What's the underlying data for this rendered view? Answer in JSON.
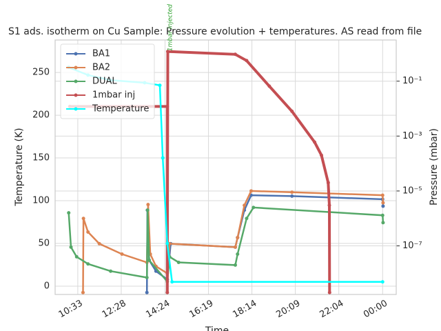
{
  "chart_data": {
    "type": "line",
    "title": "S1 ads. isotherm on Cu Sample: Pressure evolution + temperatures. AS read from file",
    "x_label": "Time",
    "y_label": "Temperature (K)",
    "y2_label": "Pressure (mbar)",
    "xlim": [
      9.55,
      24.6
    ],
    "xticks": [
      {
        "value": 10.55,
        "label": "10:33"
      },
      {
        "value": 12.467,
        "label": "12:28"
      },
      {
        "value": 14.4,
        "label": "14:24"
      },
      {
        "value": 16.317,
        "label": "16:19"
      },
      {
        "value": 18.233,
        "label": "18:14"
      },
      {
        "value": 20.15,
        "label": "20:09"
      },
      {
        "value": 22.067,
        "label": "22:04"
      },
      {
        "value": 24,
        "label": "00:00"
      }
    ],
    "ylim": [
      -9.7,
      288
    ],
    "yticks": [
      0,
      50,
      100,
      150,
      200,
      250
    ],
    "y2lim": [
      1.7e-09,
      3.16
    ],
    "y2scale": "log",
    "y2ticks": [
      {
        "value": 1e-07,
        "label": "10⁻⁷"
      },
      {
        "value": 1e-05,
        "label": "10⁻⁵"
      },
      {
        "value": 0.001,
        "label": "10⁻³"
      },
      {
        "value": 0.1,
        "label": "10⁻¹"
      }
    ],
    "grid": true,
    "legend": "upper left",
    "annotations": [
      {
        "x": 14.5,
        "text": "1mbar injected"
      }
    ],
    "series": [
      {
        "name": "BA1",
        "color": "#4c72b0",
        "axis": "y2",
        "x": [
          13.6,
          13.62,
          13.7,
          14.0,
          14.5,
          14.65,
          17.5,
          17.6,
          17.9,
          18.2,
          20,
          24,
          24.02
        ],
        "values": [
          2e-09,
          2e-06,
          3e-08,
          1.2e-08,
          6e-09,
          1.2e-07,
          9e-08,
          2e-07,
          2e-06,
          7e-06,
          6.5e-06,
          5e-06,
          2.8e-06
        ]
      },
      {
        "name": "BA2",
        "color": "#dd8452",
        "axis": "y2",
        "x": [
          10.78,
          10.8,
          11.0,
          11.5,
          12.5,
          13.6,
          13.65,
          13.75,
          14.0,
          14.5,
          14.6,
          17.5,
          17.6,
          17.9,
          18.2,
          20,
          24,
          24.02
        ],
        "values": [
          2e-09,
          1e-06,
          3.2e-07,
          1.2e-07,
          5e-08,
          2.5e-08,
          3.2e-06,
          5e-08,
          1.8e-08,
          1e-08,
          1.2e-07,
          9e-08,
          2e-07,
          3e-06,
          1e-05,
          9e-06,
          7e-06,
          3.7e-06
        ]
      },
      {
        "name": "DUAL",
        "color": "#55a868",
        "axis": "y2",
        "x": [
          10.15,
          10.25,
          10.5,
          11,
          12,
          13.6,
          13.63,
          13.7,
          14.5,
          14.6,
          15,
          17.5,
          17.6,
          18.0,
          18.3,
          24,
          24.02
        ],
        "values": [
          1.6e-06,
          9e-08,
          4e-08,
          2.2e-08,
          1.2e-08,
          7e-09,
          2e-06,
          3e-08,
          5e-09,
          4e-08,
          2.5e-08,
          2e-08,
          5e-08,
          1e-06,
          2.5e-06,
          1.3e-06,
          7e-07
        ]
      },
      {
        "name": "1mbar inj",
        "color": "#c44e52",
        "axis": "y2",
        "x": [
          10.2,
          14.5,
          14.5,
          14.52,
          17.5,
          18,
          19,
          20,
          21,
          21.3,
          21.6,
          21.65,
          21.66
        ],
        "values": [
          0.012,
          0.012,
          2e-09,
          1.2,
          0.95,
          0.56,
          0.066,
          0.008,
          0.0006,
          0.0002,
          2e-05,
          3e-06,
          2e-09
        ]
      },
      {
        "name": "Temperature",
        "color": "#00ffff",
        "x": [
          10.15,
          11,
          12,
          13.5,
          14.17,
          14.3,
          14.5,
          14.71,
          24
        ],
        "values": [
          256,
          247,
          241,
          238,
          235,
          150,
          50,
          5,
          5
        ]
      }
    ]
  }
}
